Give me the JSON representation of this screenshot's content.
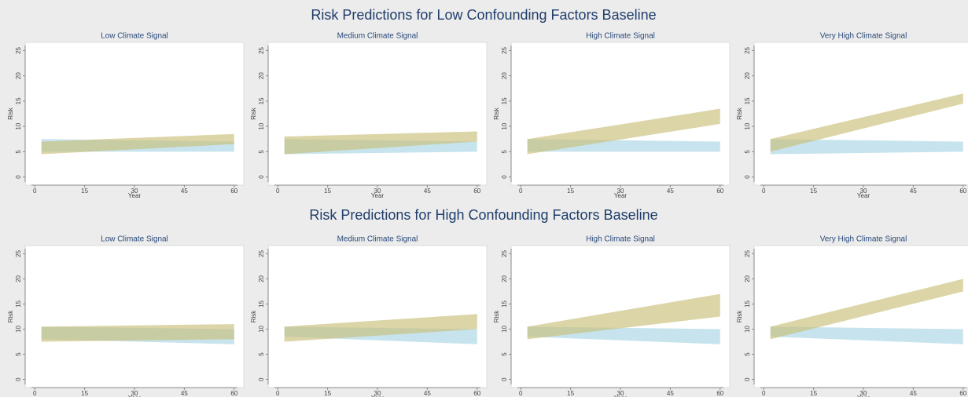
{
  "sections": [
    {
      "title": "Risk Predictions for Low Confounding Factors Baseline"
    },
    {
      "title": "Risk Predictions for High Confounding Factors Baseline"
    }
  ],
  "chart_data": [
    {
      "type": "area",
      "title": "Low Climate Signal",
      "x_label": "Year",
      "y_label": "Risk",
      "x": [
        2,
        60
      ],
      "xlim": [
        -1,
        61
      ],
      "ylim": [
        -1,
        26
      ],
      "xticks": [
        0,
        15,
        30,
        45,
        60
      ],
      "yticks": [
        0,
        5,
        10,
        15,
        20,
        25
      ],
      "series": [
        {
          "color": "#a9d6e5",
          "lower": [
            5,
            5
          ],
          "upper": [
            7.5,
            7
          ]
        },
        {
          "color": "#c9bf7a",
          "lower": [
            4.5,
            6.5
          ],
          "upper": [
            7,
            8.5
          ]
        }
      ]
    },
    {
      "type": "area",
      "title": "Medium Climate Signal",
      "x_label": "Year",
      "y_label": "Risk",
      "x": [
        2,
        60
      ],
      "xlim": [
        -1,
        61
      ],
      "ylim": [
        -1,
        26
      ],
      "xticks": [
        0,
        15,
        30,
        45,
        60
      ],
      "yticks": [
        0,
        5,
        10,
        15,
        20,
        25
      ],
      "series": [
        {
          "color": "#a9d6e5",
          "lower": [
            4.5,
            5
          ],
          "upper": [
            7.5,
            7
          ]
        },
        {
          "color": "#c9bf7a",
          "lower": [
            4.5,
            7
          ],
          "upper": [
            8,
            9
          ]
        }
      ]
    },
    {
      "type": "area",
      "title": "High Climate Signal",
      "x_label": "Year",
      "y_label": "Risk",
      "x": [
        2,
        60
      ],
      "xlim": [
        -1,
        61
      ],
      "ylim": [
        -1,
        26
      ],
      "xticks": [
        0,
        15,
        30,
        45,
        60
      ],
      "yticks": [
        0,
        5,
        10,
        15,
        20,
        25
      ],
      "series": [
        {
          "color": "#a9d6e5",
          "lower": [
            5,
            5
          ],
          "upper": [
            7.5,
            7
          ]
        },
        {
          "color": "#c9bf7a",
          "lower": [
            4.5,
            10.5
          ],
          "upper": [
            7.5,
            13.5
          ]
        }
      ]
    },
    {
      "type": "area",
      "title": "Very High Climate Signal",
      "x_label": "Year",
      "y_label": "Risk",
      "x": [
        2,
        60
      ],
      "xlim": [
        -1,
        61
      ],
      "ylim": [
        -1,
        26
      ],
      "xticks": [
        0,
        15,
        30,
        45,
        60
      ],
      "yticks": [
        0,
        5,
        10,
        15,
        20,
        25
      ],
      "series": [
        {
          "color": "#a9d6e5",
          "lower": [
            4.5,
            5
          ],
          "upper": [
            7.5,
            7
          ]
        },
        {
          "color": "#c9bf7a",
          "lower": [
            5,
            14.5
          ],
          "upper": [
            7.5,
            16.5
          ]
        }
      ]
    },
    {
      "type": "area",
      "title": "Low Climate Signal",
      "x_label": "Year",
      "y_label": "Risk",
      "x": [
        2,
        60
      ],
      "xlim": [
        -1,
        61
      ],
      "ylim": [
        -1,
        26
      ],
      "xticks": [
        0,
        15,
        30,
        45,
        60
      ],
      "yticks": [
        0,
        5,
        10,
        15,
        20,
        25
      ],
      "series": [
        {
          "color": "#a9d6e5",
          "lower": [
            8,
            7
          ],
          "upper": [
            10.5,
            10
          ]
        },
        {
          "color": "#c9bf7a",
          "lower": [
            7.5,
            8
          ],
          "upper": [
            10.5,
            11
          ]
        }
      ]
    },
    {
      "type": "area",
      "title": "Medium Climate Signal",
      "x_label": "Year",
      "y_label": "Risk",
      "x": [
        2,
        60
      ],
      "xlim": [
        -1,
        61
      ],
      "ylim": [
        -1,
        26
      ],
      "xticks": [
        0,
        15,
        30,
        45,
        60
      ],
      "yticks": [
        0,
        5,
        10,
        15,
        20,
        25
      ],
      "series": [
        {
          "color": "#a9d6e5",
          "lower": [
            8.5,
            7
          ],
          "upper": [
            10.5,
            10
          ]
        },
        {
          "color": "#c9bf7a",
          "lower": [
            7.5,
            10
          ],
          "upper": [
            10.5,
            13
          ]
        }
      ]
    },
    {
      "type": "area",
      "title": "High Climate Signal",
      "x_label": "Year",
      "y_label": "Risk",
      "x": [
        2,
        60
      ],
      "xlim": [
        -1,
        61
      ],
      "ylim": [
        -1,
        26
      ],
      "xticks": [
        0,
        15,
        30,
        45,
        60
      ],
      "yticks": [
        0,
        5,
        10,
        15,
        20,
        25
      ],
      "series": [
        {
          "color": "#a9d6e5",
          "lower": [
            8.5,
            7
          ],
          "upper": [
            10.5,
            10
          ]
        },
        {
          "color": "#c9bf7a",
          "lower": [
            8,
            12.5
          ],
          "upper": [
            10.5,
            17
          ]
        }
      ]
    },
    {
      "type": "area",
      "title": "Very High Climate Signal",
      "x_label": "Year",
      "y_label": "Risk",
      "x": [
        2,
        60
      ],
      "xlim": [
        -1,
        61
      ],
      "ylim": [
        -1,
        26
      ],
      "xticks": [
        0,
        15,
        30,
        45,
        60
      ],
      "yticks": [
        0,
        5,
        10,
        15,
        20,
        25
      ],
      "series": [
        {
          "color": "#a9d6e5",
          "lower": [
            8.5,
            7
          ],
          "upper": [
            10.5,
            10
          ]
        },
        {
          "color": "#c9bf7a",
          "lower": [
            8,
            17.5
          ],
          "upper": [
            10.5,
            20
          ]
        }
      ]
    }
  ]
}
